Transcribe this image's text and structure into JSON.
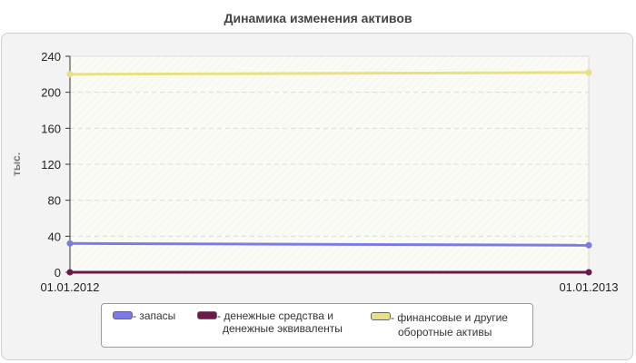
{
  "chart_data": {
    "type": "line",
    "title": "Динамика изменения активов",
    "ylabel": "тыс.",
    "xlabel": "",
    "x": [
      "01.01.2012",
      "01.01.2013"
    ],
    "ylim": [
      0,
      240
    ],
    "yticks": [
      0,
      40,
      80,
      120,
      160,
      200,
      240
    ],
    "grid": true,
    "legend": "bottom",
    "series": [
      {
        "name": "- запасы",
        "values": [
          32,
          30
        ],
        "color": "#7b7be8"
      },
      {
        "name": "- денежные средства и денежные эквиваленты",
        "values": [
          0,
          0
        ],
        "color": "#6b1a4a"
      },
      {
        "name": "- финансовые и другие оборотные активы",
        "values": [
          220,
          222
        ],
        "color": "#e8e088"
      }
    ]
  },
  "legend": {
    "items": [
      {
        "line1": "- запасы",
        "line2": "",
        "color": "#7b7be8"
      },
      {
        "line1": "- денежные средства и",
        "line2": "денежные эквиваленты",
        "color": "#6b1a4a"
      },
      {
        "line1": "- финансовые и другие",
        "line2": "оборотные активы",
        "color": "#e8e088"
      }
    ]
  }
}
